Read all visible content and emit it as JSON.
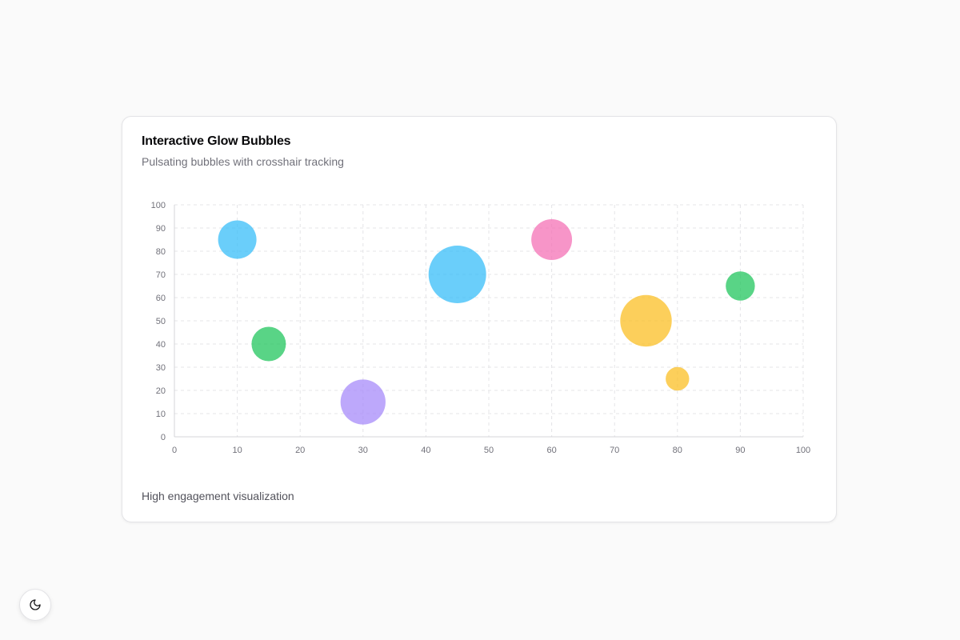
{
  "card": {
    "title": "Interactive Glow Bubbles",
    "subtitle": "Pulsating bubbles with crosshair tracking",
    "footer": "High engagement visualization"
  },
  "theme_toggle": {
    "icon": "moon-icon"
  },
  "chart_data": {
    "type": "scatter",
    "title": "Interactive Glow Bubbles",
    "subtitle": "Pulsating bubbles with crosshair tracking",
    "xlabel": "",
    "ylabel": "",
    "xlim": [
      0,
      100
    ],
    "ylim": [
      0,
      100
    ],
    "x_ticks": [
      0,
      10,
      20,
      30,
      40,
      50,
      60,
      70,
      80,
      90,
      100
    ],
    "y_ticks": [
      0,
      10,
      20,
      30,
      40,
      50,
      60,
      70,
      80,
      90,
      100
    ],
    "grid": true,
    "legend": "none",
    "points": [
      {
        "x": 10,
        "y": 85,
        "z": 400,
        "color": "#38bdf8"
      },
      {
        "x": 15,
        "y": 40,
        "z": 320,
        "color": "#22c55e"
      },
      {
        "x": 30,
        "y": 15,
        "z": 550,
        "color": "#a78bfa"
      },
      {
        "x": 45,
        "y": 70,
        "z": 900,
        "color": "#38bdf8"
      },
      {
        "x": 60,
        "y": 85,
        "z": 450,
        "color": "#f472b6"
      },
      {
        "x": 75,
        "y": 50,
        "z": 720,
        "color": "#fbbf24"
      },
      {
        "x": 80,
        "y": 25,
        "z": 150,
        "color": "#fbbf24"
      },
      {
        "x": 90,
        "y": 65,
        "z": 230,
        "color": "#22c55e"
      }
    ]
  }
}
